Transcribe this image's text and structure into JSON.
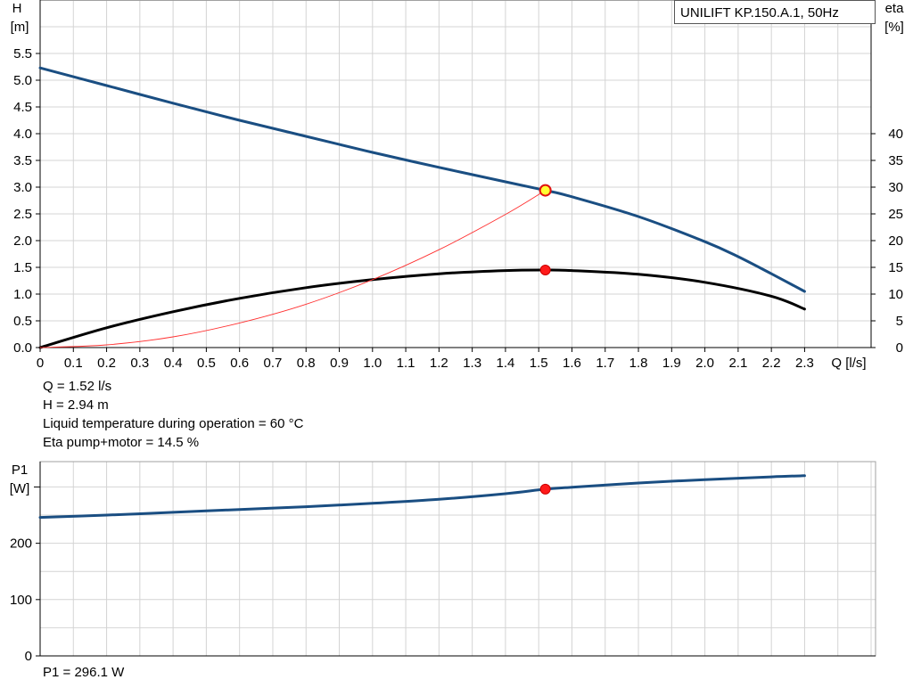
{
  "chart_data": [
    {
      "type": "line",
      "legend": "UNILIFT KP.150.A.1, 50Hz",
      "x_axis": {
        "label": "Q [l/s]",
        "range": [
          0,
          2.5
        ],
        "ticks": [
          "0",
          "0.1",
          "0.2",
          "0.3",
          "0.4",
          "0.5",
          "0.6",
          "0.7",
          "0.8",
          "0.9",
          "1.0",
          "1.1",
          "1.2",
          "1.3",
          "1.4",
          "1.5",
          "1.6",
          "1.7",
          "1.8",
          "1.9",
          "2.0",
          "2.1",
          "2.2",
          "2.3"
        ],
        "grid": true
      },
      "y_left": {
        "label_line1": "H",
        "label_line2": "[m]",
        "range": [
          0,
          6.5
        ],
        "ticks": [
          "0.0",
          "0.5",
          "1.0",
          "1.5",
          "2.0",
          "2.5",
          "3.0",
          "3.5",
          "4.0",
          "4.5",
          "5.0",
          "5.5"
        ]
      },
      "y_right": {
        "label_line1": "eta",
        "label_line2": "[%]",
        "range": [
          0,
          65
        ],
        "ticks": [
          "0",
          "5",
          "10",
          "15",
          "20",
          "25",
          "30",
          "35",
          "40"
        ]
      },
      "series": [
        {
          "key": "H",
          "axis": "left",
          "color": "#1a4e82",
          "x": [
            0,
            0.2,
            0.4,
            0.6,
            0.8,
            1.0,
            1.2,
            1.4,
            1.52,
            1.6,
            1.8,
            2.0,
            2.1,
            2.2,
            2.3
          ],
          "y": [
            5.23,
            4.9,
            4.57,
            4.25,
            3.95,
            3.65,
            3.37,
            3.1,
            2.94,
            2.82,
            2.45,
            1.98,
            1.7,
            1.38,
            1.05
          ]
        },
        {
          "key": "eta",
          "axis": "right",
          "color": "#000000",
          "x": [
            0,
            0.2,
            0.4,
            0.6,
            0.8,
            1.0,
            1.2,
            1.4,
            1.52,
            1.6,
            1.8,
            2.0,
            2.2,
            2.3
          ],
          "y": [
            0,
            3.7,
            6.7,
            9.2,
            11.2,
            12.7,
            13.8,
            14.4,
            14.5,
            14.4,
            13.7,
            12.2,
            9.6,
            7.2
          ]
        },
        {
          "key": "system-curve",
          "axis": "left",
          "color": "#ff3030",
          "x": [
            0,
            0.2,
            0.4,
            0.6,
            0.8,
            1.0,
            1.2,
            1.4,
            1.52
          ],
          "y": [
            0,
            0.05,
            0.2,
            0.46,
            0.81,
            1.27,
            1.83,
            2.49,
            2.94
          ]
        }
      ],
      "duty_point": {
        "x": 1.52,
        "H": 2.94,
        "eta": 14.5
      }
    },
    {
      "type": "line",
      "x_axis": {
        "range": [
          0,
          2.5
        ],
        "grid": true
      },
      "y_left": {
        "label_line1": "P1",
        "label_line2": "[W]",
        "range": [
          0,
          345
        ],
        "ticks": [
          "0",
          "100",
          "200"
        ],
        "minor_tick_at": 300
      },
      "series": [
        {
          "key": "P1",
          "color": "#1a4e82",
          "x": [
            0,
            0.2,
            0.4,
            0.6,
            0.8,
            1.0,
            1.2,
            1.4,
            1.52,
            1.6,
            1.8,
            2.0,
            2.2,
            2.3
          ],
          "y": [
            246,
            250,
            255,
            260,
            265,
            271,
            278,
            288,
            296.1,
            299.5,
            307,
            313,
            318,
            320
          ]
        }
      ],
      "duty_point": {
        "x": 1.52,
        "y": 296.1
      }
    }
  ],
  "info": {
    "q": "Q = 1.52 l/s",
    "h": "H = 2.94 m",
    "temp": "Liquid temperature during operation = 60 °C",
    "eta": "Eta pump+motor = 14.5 %",
    "p1": "P1 = 296.1 W"
  }
}
